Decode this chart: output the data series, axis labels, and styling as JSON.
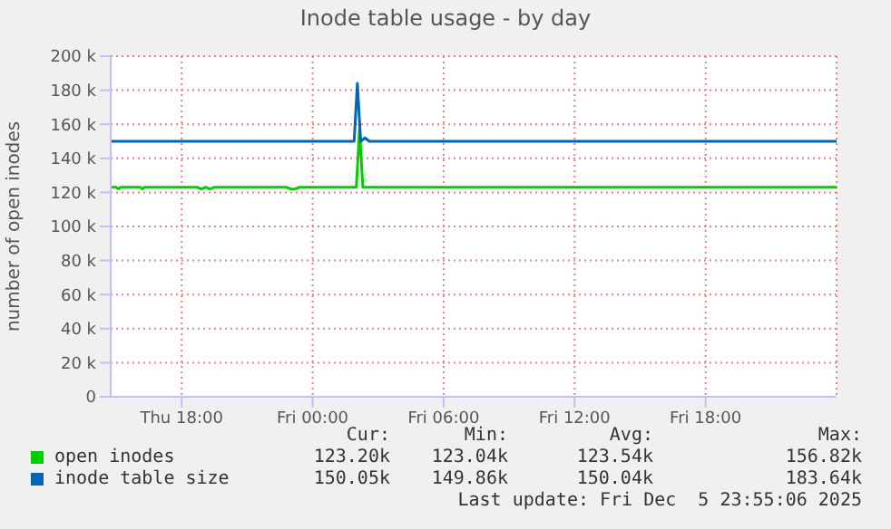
{
  "chart_data": {
    "type": "line",
    "title": "Inode table usage - by day",
    "ylabel": "number of open inodes",
    "xlim": [
      "2025-12-04T14:45",
      "2025-12-06T00:00"
    ],
    "xticks": [
      {
        "value": "2025-12-04T18:00",
        "label": "Thu 18:00"
      },
      {
        "value": "2025-12-05T00:00",
        "label": "Fri 00:00"
      },
      {
        "value": "2025-12-05T06:00",
        "label": "Fri 06:00"
      },
      {
        "value": "2025-12-05T12:00",
        "label": "Fri 12:00"
      },
      {
        "value": "2025-12-05T18:00",
        "label": "Fri 18:00"
      }
    ],
    "ylim": [
      0,
      200000
    ],
    "yticks": [
      {
        "value": 0,
        "label": "0"
      },
      {
        "value": 20000,
        "label": "20 k"
      },
      {
        "value": 40000,
        "label": "40 k"
      },
      {
        "value": 60000,
        "label": "60 k"
      },
      {
        "value": 80000,
        "label": "80 k"
      },
      {
        "value": 100000,
        "label": "100 k"
      },
      {
        "value": 120000,
        "label": "120 k"
      },
      {
        "value": 140000,
        "label": "140 k"
      },
      {
        "value": 160000,
        "label": "160 k"
      },
      {
        "value": 180000,
        "label": "180 k"
      },
      {
        "value": 200000,
        "label": "200 k"
      }
    ],
    "grid": true,
    "legend": "bottom",
    "marker": "none",
    "line_style": "solid",
    "series": [
      {
        "name": "open inodes",
        "color": "#00cc00",
        "x": [
          "2025-12-04T14:45",
          "2025-12-04T15:00",
          "2025-12-04T15:06",
          "2025-12-04T15:12",
          "2025-12-04T16:06",
          "2025-12-04T16:12",
          "2025-12-04T16:18",
          "2025-12-04T18:42",
          "2025-12-04T18:54",
          "2025-12-04T19:06",
          "2025-12-04T19:18",
          "2025-12-04T19:30",
          "2025-12-04T19:42",
          "2025-12-04T22:48",
          "2025-12-04T23:00",
          "2025-12-04T23:12",
          "2025-12-04T23:24",
          "2025-12-05T02:00",
          "2025-12-05T02:09",
          "2025-12-05T02:18",
          "2025-12-05T02:24",
          "2025-12-05T06:00",
          "2025-12-05T12:00",
          "2025-12-05T18:00",
          "2025-12-06T00:00"
        ],
        "values": [
          123000,
          123000,
          122000,
          123000,
          123000,
          122000,
          123000,
          123000,
          122000,
          123000,
          122000,
          123000,
          123000,
          123000,
          122000,
          122000,
          123000,
          123000,
          157000,
          123000,
          123000,
          123000,
          123000,
          123000,
          123000
        ]
      },
      {
        "name": "inode table size",
        "color": "#0066b3",
        "x": [
          "2025-12-04T14:45",
          "2025-12-04T20:00",
          "2025-12-05T01:54",
          "2025-12-05T02:03",
          "2025-12-05T02:12",
          "2025-12-05T02:24",
          "2025-12-05T02:36",
          "2025-12-05T06:00",
          "2025-12-05T12:00",
          "2025-12-05T18:00",
          "2025-12-06T00:00"
        ],
        "values": [
          150000,
          150000,
          150000,
          184000,
          150000,
          152000,
          150000,
          150000,
          150000,
          150000,
          150000
        ]
      }
    ],
    "annotations": [
      "Cur:",
      "Min:",
      "Avg:",
      "Max:",
      "123.20k",
      "123.04k",
      "123.54k",
      "156.82k",
      "150.05k",
      "149.86k",
      "150.04k",
      "183.64k",
      "Last update: Fri Dec  5 23:55:06 2025"
    ]
  }
}
